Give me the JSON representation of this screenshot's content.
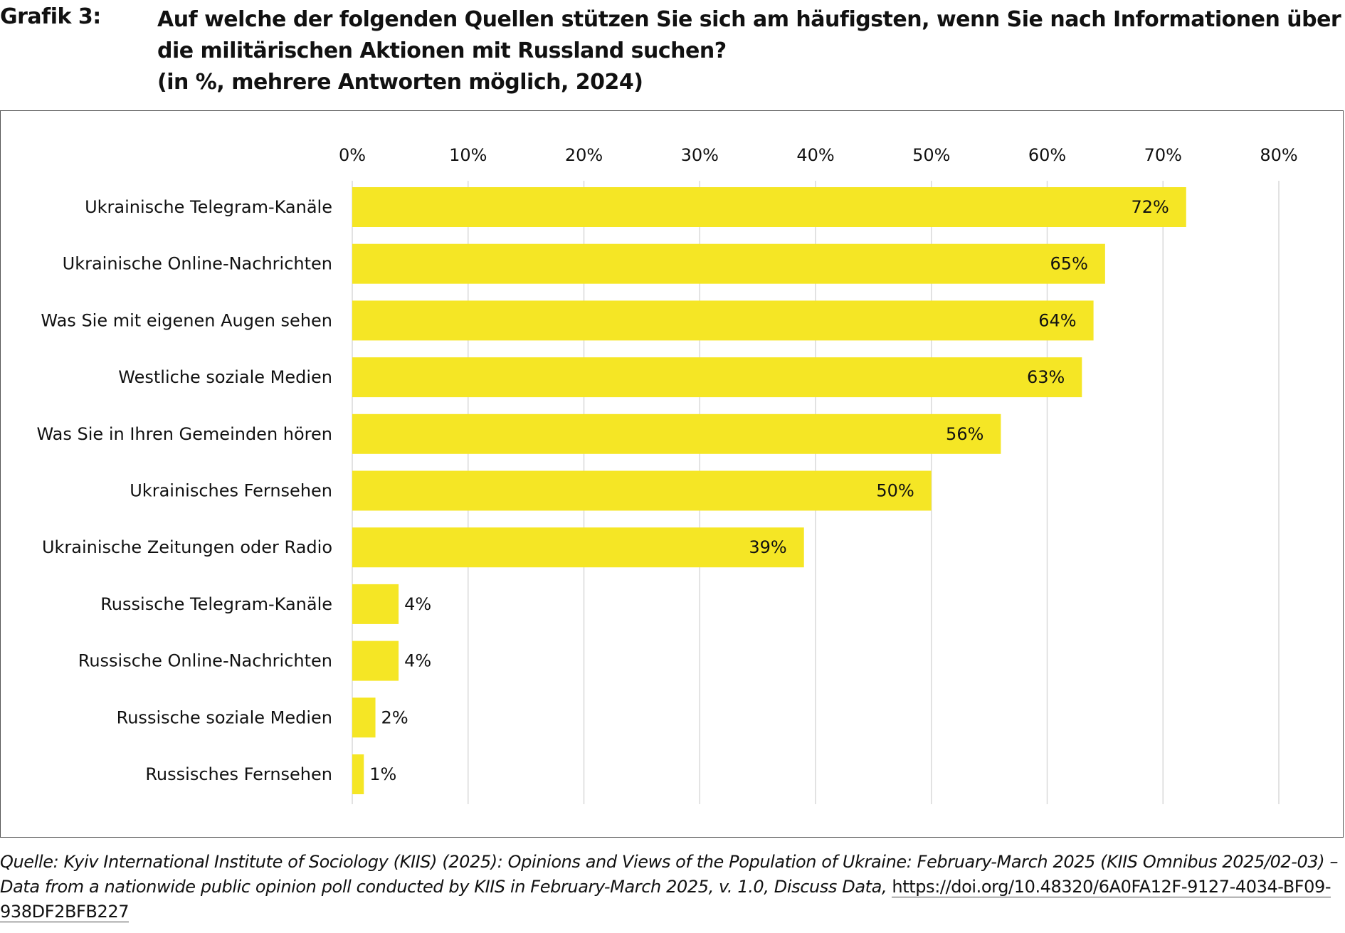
{
  "figure": {
    "label": "Grafik 3:",
    "title_lines": [
      "Auf welche der folgenden Quellen stützen Sie sich am häufigsten, wenn Sie nach Informationen über",
      "die militärischen Aktionen mit Russland suchen?",
      "(in %, mehrere Antworten möglich, 2024)"
    ]
  },
  "source": {
    "text": "Quelle: Kyiv International Institute of Sociology (KIIS) (2025): Opinions and Views of the Population of Ukraine: February-March 2025 (KIIS Omnibus 2025/02-03) – Data from a nationwide public opinion poll conducted by KIIS in February-March 2025, v. 1.0, Discuss Data,",
    "link": "https://doi.org/10.48320/6A0FA12F-9127-4034-BF09-938DF2BFB227"
  },
  "chart_data": {
    "type": "bar",
    "orientation": "horizontal",
    "title": "Auf welche der folgenden Quellen stützen Sie sich am häufigsten, wenn Sie nach Informationen über die militärischen Aktionen mit Russland suchen? (in %, mehrere Antworten möglich, 2024)",
    "xlabel": "",
    "ylabel": "",
    "xlim": [
      0,
      80
    ],
    "grid": true,
    "axis_position": "top",
    "ticks": [
      0,
      10,
      20,
      30,
      40,
      50,
      60,
      70,
      80
    ],
    "tick_labels": [
      "0%",
      "10%",
      "20%",
      "30%",
      "40%",
      "50%",
      "60%",
      "70%",
      "80%"
    ],
    "categories": [
      "Ukrainische Telegram-Kanäle",
      "Ukrainische Online-Nachrichten",
      "Was Sie mit eigenen Augen sehen",
      "Westliche soziale Medien",
      "Was Sie in Ihren Gemeinden hören",
      "Ukrainisches Fernsehen",
      "Ukrainische Zeitungen oder Radio",
      "Russische Telegram-Kanäle",
      "Russische Online-Nachrichten",
      "Russische soziale Medien",
      "Russisches Fernsehen"
    ],
    "values": [
      72,
      65,
      64,
      63,
      56,
      50,
      39,
      4,
      4,
      2,
      1
    ],
    "value_labels": [
      "72%",
      "65%",
      "64%",
      "63%",
      "56%",
      "50%",
      "39%",
      "4%",
      "4%",
      "2%",
      "1%"
    ],
    "bar_color": "#f5e625",
    "grid_color": "#d9d9d9"
  }
}
